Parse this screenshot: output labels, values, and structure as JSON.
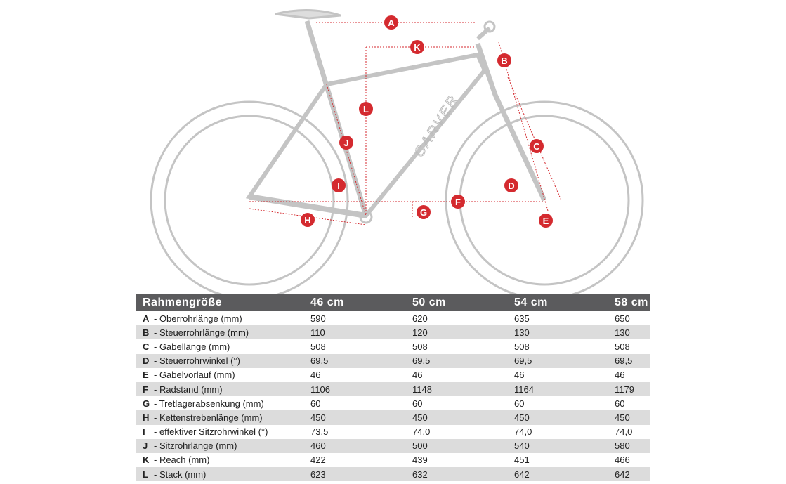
{
  "diagram": {
    "brand_text": "CARVER",
    "markers": [
      "A",
      "B",
      "C",
      "D",
      "E",
      "F",
      "G",
      "H",
      "I",
      "J",
      "K",
      "L"
    ],
    "accent_color": "#d42a2f",
    "frame_color": "#bdbdbd"
  },
  "table": {
    "headers": [
      "Rahmengröße",
      "46 cm",
      "50 cm",
      "54 cm",
      "58 cm"
    ],
    "rows": [
      {
        "letter": "A",
        "label": "- Oberrohrlänge (mm)",
        "values": [
          "590",
          "620",
          "635",
          "650"
        ]
      },
      {
        "letter": "B",
        "label": "- Steuerrohrlänge (mm)",
        "values": [
          "110",
          "120",
          "130",
          "130"
        ]
      },
      {
        "letter": "C",
        "label": "- Gabellänge (mm)",
        "values": [
          "508",
          "508",
          "508",
          "508"
        ]
      },
      {
        "letter": "D",
        "label": "- Steuerrohrwinkel (°)",
        "values": [
          "69,5",
          "69,5",
          "69,5",
          "69,5"
        ]
      },
      {
        "letter": "E",
        "label": "- Gabelvorlauf (mm)",
        "values": [
          "46",
          "46",
          "46",
          "46"
        ]
      },
      {
        "letter": "F",
        "label": "- Radstand (mm)",
        "values": [
          "1106",
          "1148",
          "1164",
          "1179"
        ]
      },
      {
        "letter": "G",
        "label": "- Tretlagerabsenkung (mm)",
        "values": [
          "60",
          "60",
          "60",
          "60"
        ]
      },
      {
        "letter": "H",
        "label": "- Kettenstrebenlänge (mm)",
        "values": [
          "450",
          "450",
          "450",
          "450"
        ]
      },
      {
        "letter": "I",
        "label": "- effektiver Sitzrohrwinkel (°)",
        "values": [
          "73,5",
          "74,0",
          "74,0",
          "74,0"
        ]
      },
      {
        "letter": "J",
        "label": "- Sitzrohrlänge (mm)",
        "values": [
          "460",
          "500",
          "540",
          "580"
        ]
      },
      {
        "letter": "K",
        "label": "- Reach (mm)",
        "values": [
          "422",
          "439",
          "451",
          "466"
        ]
      },
      {
        "letter": "L",
        "label": "- Stack (mm)",
        "values": [
          "623",
          "632",
          "642",
          "642"
        ]
      }
    ]
  }
}
